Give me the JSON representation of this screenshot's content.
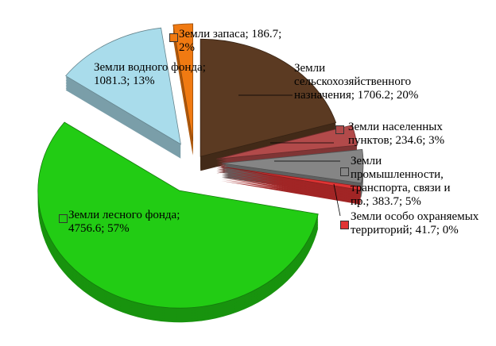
{
  "chart_data": {
    "type": "pie",
    "values": [
      1706.2,
      234.6,
      383.7,
      41.7,
      4756.6,
      1081.3,
      186.7
    ],
    "value_labels": [
      "Земли сельскохозяйственного назначения; 1706.2; 20%",
      "Земли населенных пунктов; 234.6; 3%",
      "Земли промышленности, транспорта, связи и пр.; 383.7; 5%",
      "Земли особо охраняемых территорий; 41.7; 0%",
      "Земли лесного фонда; 4756.6; 57%",
      "Земли водного фонда; 1081.3; 13%",
      "Земли запаса; 186.7; 2%"
    ],
    "colors": [
      "#5b3a22",
      "#b24a4a",
      "#858585",
      "#e03434",
      "#22cc14",
      "#a9dceb",
      "#f07a12"
    ]
  }
}
